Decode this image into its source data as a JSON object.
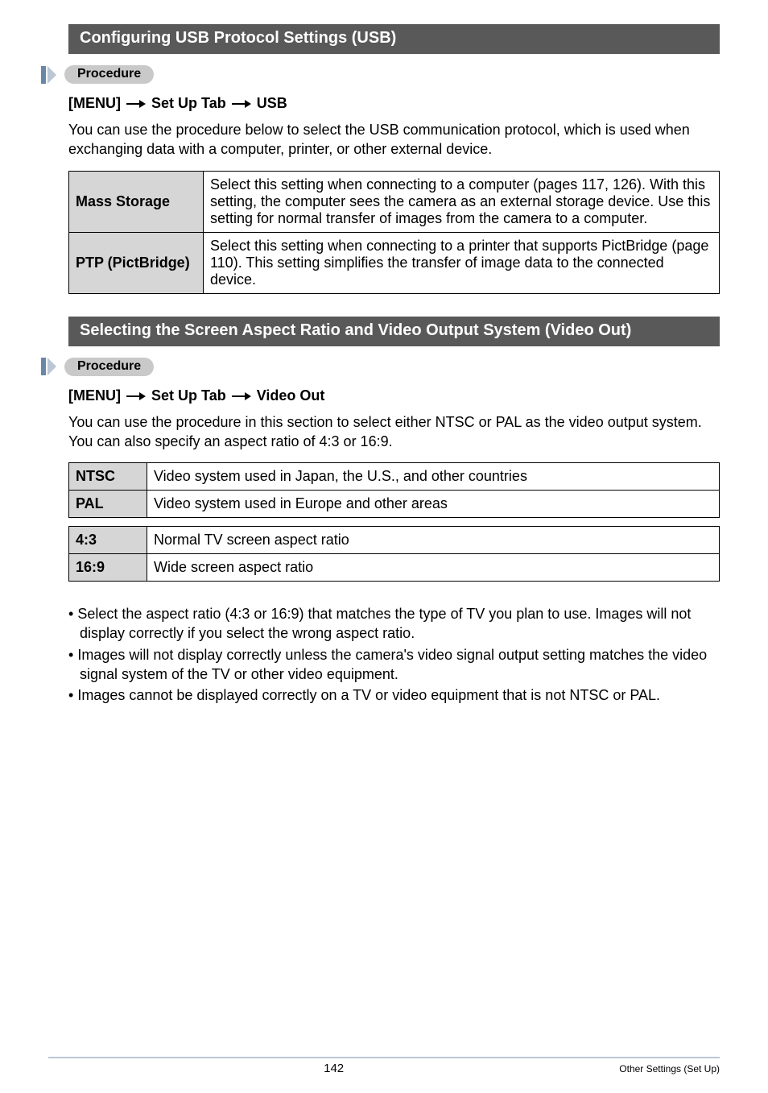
{
  "colors": {
    "header_bar_bg": "#595959",
    "header_bar_text": "#ffffff",
    "proc_mark": "#6a87a8",
    "proc_triangle": "#bcc7d5",
    "proc_pill_bg": "#c9c9c9",
    "table_label_bg": "#d6d6d6",
    "table_border": "#000000",
    "footer_rule": "#bcc7d5",
    "body_text": "#000000"
  },
  "typography": {
    "body_fontsize": 18,
    "header_fontsize": 20,
    "footer_page_fontsize": 15,
    "footer_right_fontsize": 12
  },
  "section1": {
    "title": "Configuring USB Protocol Settings (USB)",
    "procedure_label": "Procedure",
    "menu_path": {
      "prefix": "[MENU]",
      "mid": "Set Up Tab",
      "suffix": "USB"
    },
    "intro": "You can use the procedure below to select the USB communication protocol, which is used when exchanging data with a computer, printer, or other external device.",
    "table": [
      {
        "label": "Mass Storage",
        "desc": "Select this setting when connecting to a computer (pages 117, 126). With this setting, the computer sees the camera as an external storage device. Use this setting for normal transfer of images from the camera to a computer."
      },
      {
        "label": "PTP (PictBridge)",
        "desc": "Select this setting when connecting to a printer that supports PictBridge (page 110). This setting simplifies the transfer of image data to the connected device."
      }
    ]
  },
  "section2": {
    "title": "Selecting the Screen Aspect Ratio and Video Output System (Video Out)",
    "procedure_label": "Procedure",
    "menu_path": {
      "prefix": "[MENU]",
      "mid": "Set Up Tab",
      "suffix": "Video Out"
    },
    "intro": "You can use the procedure in this section to select either NTSC or PAL as the video output system. You can also specify an aspect ratio of 4:3 or 16:9.",
    "table_system": [
      {
        "label": "NTSC",
        "desc": "Video system used in Japan, the U.S., and other countries"
      },
      {
        "label": "PAL",
        "desc": "Video system used in Europe and other areas"
      }
    ],
    "table_aspect": [
      {
        "label": "4:3",
        "desc": "Normal TV screen aspect ratio"
      },
      {
        "label": "16:9",
        "desc": "Wide screen aspect ratio"
      }
    ],
    "bullets": [
      "Select the aspect ratio (4:3 or 16:9) that matches the type of TV you plan to use. Images will not display correctly if you select the wrong aspect ratio.",
      "Images will not display correctly unless the camera's video signal output setting matches the video signal system of the TV or other video equipment.",
      "Images cannot be displayed correctly on a TV or video equipment that is not NTSC or PAL."
    ]
  },
  "footer": {
    "page": "142",
    "right": "Other Settings (Set Up)"
  }
}
